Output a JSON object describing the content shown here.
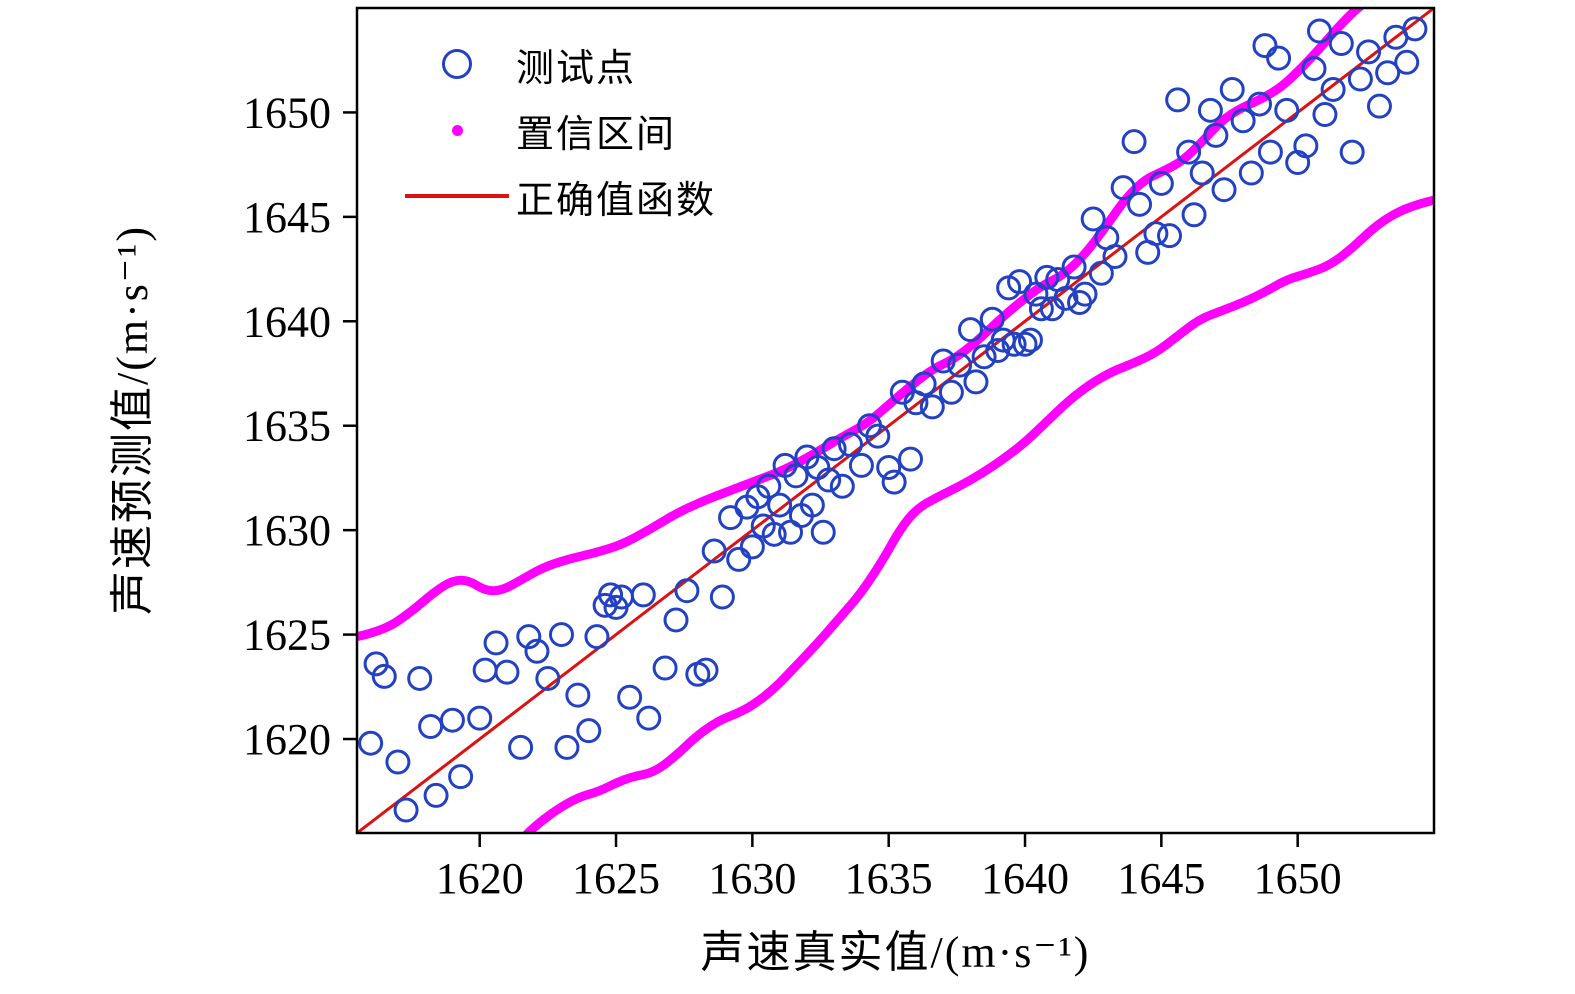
{
  "chart_data": {
    "type": "scatter",
    "title": "",
    "xlabel": "声速真实值/(m·s⁻¹)",
    "ylabel": "声速预测值/(m·s⁻¹)",
    "xlim": [
      1615.5,
      1655
    ],
    "ylim": [
      1615.5,
      1655
    ],
    "grid": false,
    "legend_position": "upper-left-inside",
    "xticks": [
      1620,
      1625,
      1630,
      1635,
      1640,
      1645,
      1650
    ],
    "yticks": [
      1620,
      1625,
      1630,
      1635,
      1640,
      1645,
      1650
    ],
    "legend": [
      {
        "label": "测试点",
        "marker": "open-circle",
        "color": "#2241c4"
      },
      {
        "label": "置信区间",
        "marker": "dot",
        "color": "#ff00ff"
      },
      {
        "label": "正确值函数",
        "marker": "line",
        "color": "#dd1111"
      }
    ],
    "colors": {
      "points": "#2241c4",
      "band": "#ff00ff",
      "identity_line": "#dd1111",
      "axes": "#000000"
    },
    "identity_line": {
      "x": [
        1615.5,
        1655
      ],
      "y": [
        1615.5,
        1655
      ]
    },
    "confidence_upper": [
      [
        1615.5,
        1624.9
      ],
      [
        1616.5,
        1625.2
      ],
      [
        1617.5,
        1626.1
      ],
      [
        1618.3,
        1627.0
      ],
      [
        1619.0,
        1627.6
      ],
      [
        1619.6,
        1627.6
      ],
      [
        1620.2,
        1627.1
      ],
      [
        1620.8,
        1627.1
      ],
      [
        1621.5,
        1627.6
      ],
      [
        1622.3,
        1628.2
      ],
      [
        1623.2,
        1628.6
      ],
      [
        1624.2,
        1628.9
      ],
      [
        1625.2,
        1629.3
      ],
      [
        1626.2,
        1630.0
      ],
      [
        1627.2,
        1630.8
      ],
      [
        1628.2,
        1631.4
      ],
      [
        1629.2,
        1631.9
      ],
      [
        1630.2,
        1632.4
      ],
      [
        1631.2,
        1632.9
      ],
      [
        1632.2,
        1633.6
      ],
      [
        1633.2,
        1634.4
      ],
      [
        1634.2,
        1635.1
      ],
      [
        1635.0,
        1636.0
      ],
      [
        1635.8,
        1636.9
      ],
      [
        1636.6,
        1637.7
      ],
      [
        1637.4,
        1638.2
      ],
      [
        1638.2,
        1639.0
      ],
      [
        1639.0,
        1640.0
      ],
      [
        1639.8,
        1640.9
      ],
      [
        1640.6,
        1641.7
      ],
      [
        1641.4,
        1642.2
      ],
      [
        1642.2,
        1643.2
      ],
      [
        1643.0,
        1644.6
      ],
      [
        1643.7,
        1645.9
      ],
      [
        1644.4,
        1646.8
      ],
      [
        1645.1,
        1647.2
      ],
      [
        1645.8,
        1647.7
      ],
      [
        1646.5,
        1648.6
      ],
      [
        1647.2,
        1649.6
      ],
      [
        1647.9,
        1650.2
      ],
      [
        1648.6,
        1650.6
      ],
      [
        1649.4,
        1651.2
      ],
      [
        1650.2,
        1652.2
      ],
      [
        1650.9,
        1653.2
      ],
      [
        1651.5,
        1654.1
      ],
      [
        1652.1,
        1654.9
      ],
      [
        1652.7,
        1655.5
      ],
      [
        1653.5,
        1656.1
      ],
      [
        1655.0,
        1656.6
      ]
    ],
    "confidence_lower": [
      [
        1616.0,
        1612.5
      ],
      [
        1618.0,
        1613.2
      ],
      [
        1620.0,
        1614.0
      ],
      [
        1621.4,
        1615.0
      ],
      [
        1622.0,
        1615.8
      ],
      [
        1622.8,
        1616.6
      ],
      [
        1623.6,
        1617.2
      ],
      [
        1624.4,
        1617.5
      ],
      [
        1625.0,
        1617.9
      ],
      [
        1625.6,
        1618.2
      ],
      [
        1626.4,
        1618.4
      ],
      [
        1627.2,
        1619.2
      ],
      [
        1628.0,
        1620.2
      ],
      [
        1628.8,
        1620.9
      ],
      [
        1629.4,
        1621.2
      ],
      [
        1630.0,
        1621.6
      ],
      [
        1630.8,
        1622.4
      ],
      [
        1631.6,
        1623.5
      ],
      [
        1632.4,
        1624.6
      ],
      [
        1633.2,
        1625.8
      ],
      [
        1634.0,
        1627.0
      ],
      [
        1634.8,
        1628.6
      ],
      [
        1635.4,
        1630.0
      ],
      [
        1636.0,
        1631.0
      ],
      [
        1636.8,
        1631.6
      ],
      [
        1637.6,
        1632.1
      ],
      [
        1638.4,
        1632.7
      ],
      [
        1639.2,
        1633.4
      ],
      [
        1640.0,
        1634.2
      ],
      [
        1640.8,
        1635.2
      ],
      [
        1641.6,
        1636.2
      ],
      [
        1642.4,
        1637.0
      ],
      [
        1643.2,
        1637.6
      ],
      [
        1644.0,
        1638.0
      ],
      [
        1644.8,
        1638.5
      ],
      [
        1645.6,
        1639.3
      ],
      [
        1646.4,
        1640.1
      ],
      [
        1647.2,
        1640.5
      ],
      [
        1648.0,
        1640.9
      ],
      [
        1648.8,
        1641.4
      ],
      [
        1649.6,
        1642.0
      ],
      [
        1650.4,
        1642.3
      ],
      [
        1651.2,
        1642.7
      ],
      [
        1652.0,
        1643.5
      ],
      [
        1652.8,
        1644.5
      ],
      [
        1653.6,
        1645.2
      ],
      [
        1654.4,
        1645.6
      ],
      [
        1655.0,
        1645.8
      ]
    ],
    "points": [
      [
        1616.0,
        1619.8
      ],
      [
        1616.2,
        1623.6
      ],
      [
        1616.5,
        1623.0
      ],
      [
        1617.0,
        1618.9
      ],
      [
        1617.3,
        1616.6
      ],
      [
        1617.8,
        1622.9
      ],
      [
        1618.2,
        1620.6
      ],
      [
        1618.4,
        1617.3
      ],
      [
        1619.0,
        1620.9
      ],
      [
        1619.3,
        1618.2
      ],
      [
        1620.0,
        1621.0
      ],
      [
        1620.2,
        1623.3
      ],
      [
        1620.6,
        1624.6
      ],
      [
        1621.0,
        1623.2
      ],
      [
        1621.5,
        1619.6
      ],
      [
        1621.8,
        1624.9
      ],
      [
        1622.1,
        1624.2
      ],
      [
        1622.5,
        1622.9
      ],
      [
        1623.0,
        1625.0
      ],
      [
        1623.2,
        1619.6
      ],
      [
        1623.6,
        1622.1
      ],
      [
        1624.0,
        1620.4
      ],
      [
        1624.3,
        1624.9
      ],
      [
        1624.6,
        1626.4
      ],
      [
        1624.8,
        1626.9
      ],
      [
        1625.0,
        1626.3
      ],
      [
        1625.2,
        1626.8
      ],
      [
        1625.5,
        1622.0
      ],
      [
        1626.0,
        1626.9
      ],
      [
        1626.2,
        1621.0
      ],
      [
        1626.8,
        1623.4
      ],
      [
        1627.2,
        1625.7
      ],
      [
        1627.6,
        1627.1
      ],
      [
        1628.0,
        1623.1
      ],
      [
        1628.3,
        1623.3
      ],
      [
        1628.6,
        1629.0
      ],
      [
        1628.9,
        1626.8
      ],
      [
        1629.2,
        1630.6
      ],
      [
        1629.5,
        1628.6
      ],
      [
        1629.8,
        1631.1
      ],
      [
        1630.0,
        1629.2
      ],
      [
        1630.2,
        1631.6
      ],
      [
        1630.4,
        1630.2
      ],
      [
        1630.6,
        1632.1
      ],
      [
        1630.8,
        1629.8
      ],
      [
        1631.0,
        1631.2
      ],
      [
        1631.2,
        1633.1
      ],
      [
        1631.4,
        1629.9
      ],
      [
        1631.6,
        1632.6
      ],
      [
        1631.8,
        1630.7
      ],
      [
        1632.0,
        1633.5
      ],
      [
        1632.2,
        1631.2
      ],
      [
        1632.4,
        1633.0
      ],
      [
        1632.6,
        1629.9
      ],
      [
        1632.8,
        1632.4
      ],
      [
        1633.0,
        1633.9
      ],
      [
        1633.3,
        1632.1
      ],
      [
        1633.6,
        1634.1
      ],
      [
        1634.0,
        1633.1
      ],
      [
        1634.3,
        1635.0
      ],
      [
        1634.6,
        1634.5
      ],
      [
        1635.0,
        1633.0
      ],
      [
        1635.2,
        1632.3
      ],
      [
        1635.5,
        1636.6
      ],
      [
        1635.8,
        1633.4
      ],
      [
        1636.0,
        1636.1
      ],
      [
        1636.3,
        1637.0
      ],
      [
        1636.6,
        1635.9
      ],
      [
        1637.0,
        1638.1
      ],
      [
        1637.3,
        1636.6
      ],
      [
        1637.6,
        1637.9
      ],
      [
        1638.0,
        1639.6
      ],
      [
        1638.2,
        1637.1
      ],
      [
        1638.5,
        1638.3
      ],
      [
        1638.8,
        1640.1
      ],
      [
        1639.0,
        1638.6
      ],
      [
        1639.2,
        1639.1
      ],
      [
        1639.4,
        1641.6
      ],
      [
        1639.6,
        1638.9
      ],
      [
        1639.8,
        1641.9
      ],
      [
        1640.0,
        1638.9
      ],
      [
        1640.2,
        1639.1
      ],
      [
        1640.4,
        1641.3
      ],
      [
        1640.6,
        1640.6
      ],
      [
        1640.8,
        1642.1
      ],
      [
        1641.0,
        1640.6
      ],
      [
        1641.2,
        1642.0
      ],
      [
        1641.5,
        1641.1
      ],
      [
        1641.8,
        1642.6
      ],
      [
        1642.0,
        1640.9
      ],
      [
        1642.2,
        1641.3
      ],
      [
        1642.5,
        1644.9
      ],
      [
        1642.8,
        1642.3
      ],
      [
        1643.0,
        1644.0
      ],
      [
        1643.3,
        1643.1
      ],
      [
        1643.6,
        1646.4
      ],
      [
        1644.0,
        1648.6
      ],
      [
        1644.2,
        1645.6
      ],
      [
        1644.5,
        1643.3
      ],
      [
        1644.8,
        1644.2
      ],
      [
        1645.0,
        1646.6
      ],
      [
        1645.3,
        1644.1
      ],
      [
        1645.6,
        1650.6
      ],
      [
        1646.0,
        1648.1
      ],
      [
        1646.2,
        1645.1
      ],
      [
        1646.5,
        1647.1
      ],
      [
        1646.8,
        1650.1
      ],
      [
        1647.0,
        1648.9
      ],
      [
        1647.3,
        1646.3
      ],
      [
        1647.6,
        1651.1
      ],
      [
        1648.0,
        1649.6
      ],
      [
        1648.3,
        1647.1
      ],
      [
        1648.6,
        1650.4
      ],
      [
        1648.8,
        1653.2
      ],
      [
        1649.0,
        1648.1
      ],
      [
        1649.3,
        1652.6
      ],
      [
        1649.6,
        1650.1
      ],
      [
        1650.0,
        1647.6
      ],
      [
        1650.3,
        1648.4
      ],
      [
        1650.6,
        1652.1
      ],
      [
        1650.8,
        1653.9
      ],
      [
        1651.0,
        1649.9
      ],
      [
        1651.3,
        1651.1
      ],
      [
        1651.6,
        1653.3
      ],
      [
        1652.0,
        1648.1
      ],
      [
        1652.3,
        1651.6
      ],
      [
        1652.6,
        1652.9
      ],
      [
        1653.0,
        1650.3
      ],
      [
        1653.3,
        1651.9
      ],
      [
        1653.6,
        1653.6
      ],
      [
        1654.0,
        1652.4
      ],
      [
        1654.3,
        1654.0
      ]
    ]
  }
}
